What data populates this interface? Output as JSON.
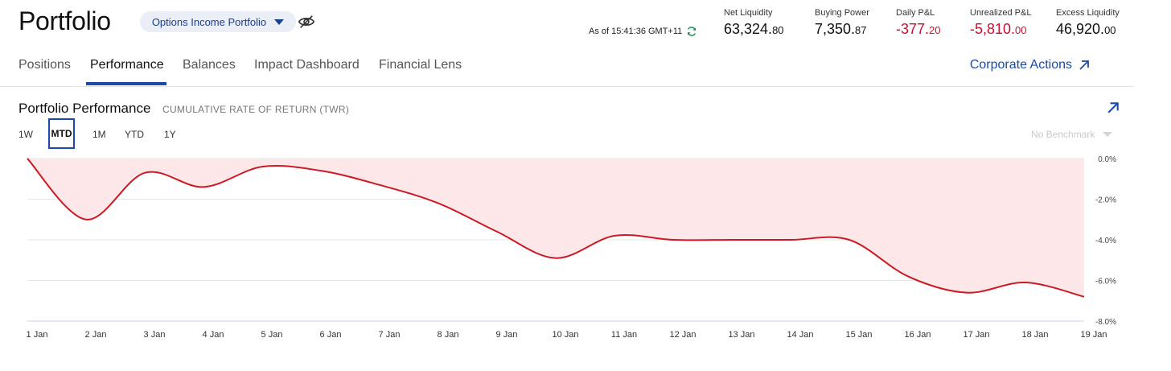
{
  "header": {
    "title": "Portfolio",
    "account_selector": "Options Income Portfolio",
    "as_of": "As of 15:41:36 GMT+11",
    "metrics": [
      {
        "label": "Net Liquidity",
        "int": "63,324.",
        "dec": "80",
        "negative": false
      },
      {
        "label": "Buying Power",
        "int": "7,350.",
        "dec": "87",
        "negative": false
      },
      {
        "label": "Daily P&L",
        "int": "-377.",
        "dec": "20",
        "negative": true
      },
      {
        "label": "Unrealized P&L",
        "int": "-5,810.",
        "dec": "00",
        "negative": true
      },
      {
        "label": "Excess Liquidity",
        "int": "46,920.",
        "dec": "00",
        "negative": false
      }
    ]
  },
  "tabs": [
    {
      "label": "Positions"
    },
    {
      "label": "Performance",
      "active": true
    },
    {
      "label": "Balances"
    },
    {
      "label": "Impact Dashboard"
    },
    {
      "label": "Financial Lens"
    }
  ],
  "corporate_actions": "Corporate Actions",
  "panel": {
    "title": "Portfolio Performance",
    "subtitle": "CUMULATIVE RATE OF RETURN (TWR)",
    "ranges": [
      "1W",
      "MTD",
      "1M",
      "YTD",
      "1Y"
    ],
    "selected_range": "MTD",
    "benchmark": "No Benchmark"
  },
  "colors": {
    "accent": "#1b4aa8",
    "negative": "#c8102e",
    "line": "#cc1a24",
    "fill": "#fde7e8"
  },
  "chart_data": {
    "type": "area",
    "x": [
      "1 Jan",
      "2 Jan",
      "3 Jan",
      "4 Jan",
      "5 Jan",
      "6 Jan",
      "7 Jan",
      "8 Jan",
      "9 Jan",
      "10 Jan",
      "11 Jan",
      "12 Jan",
      "13 Jan",
      "14 Jan",
      "15 Jan",
      "16 Jan",
      "17 Jan",
      "18 Jan",
      "19 Jan"
    ],
    "values": [
      0.0,
      -3.0,
      -0.7,
      -1.4,
      -0.4,
      -0.6,
      -1.3,
      -2.2,
      -3.6,
      -4.9,
      -3.8,
      -4.0,
      -4.0,
      -4.0,
      -4.0,
      -5.8,
      -6.6,
      -6.1,
      -6.8
    ],
    "y_ticks": [
      "0.0%",
      "-2.0%",
      "-4.0%",
      "-6.0%",
      "-8.0%"
    ],
    "ylim": [
      -8.0,
      0.0
    ],
    "grid": true
  }
}
